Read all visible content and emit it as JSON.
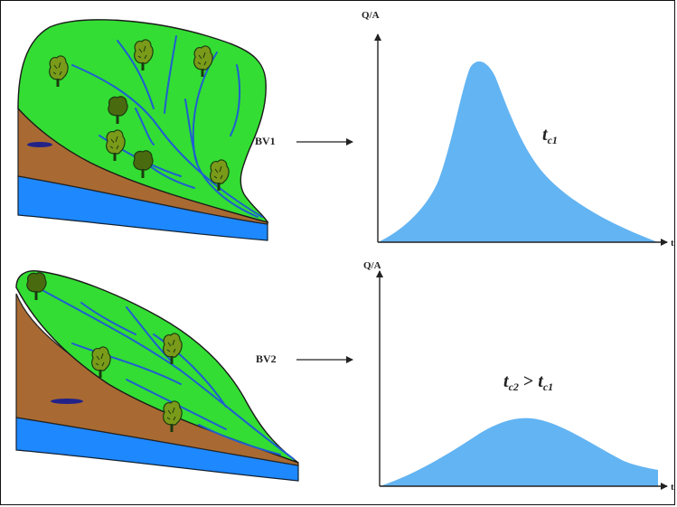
{
  "top": {
    "basin_label": "BV1",
    "y_axis_label": "Q/A",
    "x_axis_label": "t",
    "annotation": {
      "main": "t",
      "sub": "c1"
    }
  },
  "bottom": {
    "basin_label": "BV2",
    "y_axis_label": "Q/A",
    "x_axis_label": "t",
    "annotation": {
      "main1": "t",
      "sub1": "c2",
      "op": " > ",
      "main2": "t",
      "sub2": "c1"
    }
  },
  "colors": {
    "vegetation": "#33dd33",
    "soil": "#a86a32",
    "water": "#1e88ff",
    "river": "#1f5fd0",
    "hydrograph": "#63b4f2",
    "lake": "#222288",
    "tree": "#7a9a1a"
  }
}
